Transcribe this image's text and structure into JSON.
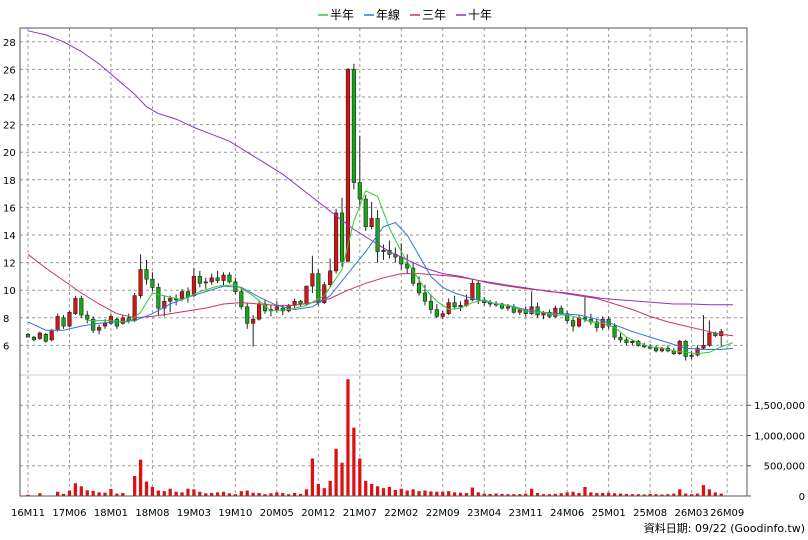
{
  "footer_note": "資料日期: 09/22  (Goodinfo.tw)",
  "chart_data": {
    "type": "candlestick",
    "legend": [
      {
        "name": "半年",
        "color": "#33cc33"
      },
      {
        "name": "年線",
        "color": "#3377dd"
      },
      {
        "name": "三年",
        "color": "#cc3366"
      },
      {
        "name": "十年",
        "color": "#8833cc"
      }
    ],
    "colors": {
      "up": "#dd1111",
      "down": "#11aa11",
      "volume": "#dd1111",
      "frame": "#555555"
    },
    "grid": true,
    "x_range": [
      0,
      120
    ],
    "x_ticks": [
      {
        "t": 0,
        "label": "16M11"
      },
      {
        "t": 7,
        "label": "17M06"
      },
      {
        "t": 14,
        "label": "18M01"
      },
      {
        "t": 21,
        "label": "18M08"
      },
      {
        "t": 28,
        "label": "19M03"
      },
      {
        "t": 35,
        "label": "19M10"
      },
      {
        "t": 42,
        "label": "20M05"
      },
      {
        "t": 49,
        "label": "20M12"
      },
      {
        "t": 56,
        "label": "21M07"
      },
      {
        "t": 63,
        "label": "22M02"
      },
      {
        "t": 70,
        "label": "22M09"
      },
      {
        "t": 77,
        "label": "23M04"
      },
      {
        "t": 84,
        "label": "23M11"
      },
      {
        "t": 91,
        "label": "24M06"
      },
      {
        "t": 98,
        "label": "25M01"
      },
      {
        "t": 105,
        "label": "25M08"
      },
      {
        "t": 112,
        "label": "26M03"
      },
      {
        "t": 118,
        "label": "26M09"
      }
    ],
    "price_axis": {
      "ylim": [
        4,
        29
      ],
      "ticks": [
        6,
        8,
        10,
        12,
        14,
        16,
        18,
        20,
        22,
        24,
        26,
        28
      ]
    },
    "volume_axis": {
      "ylim": [
        0,
        1950000
      ],
      "ticks": [
        0,
        500000,
        1000000,
        1500000
      ],
      "tick_labels": [
        "0",
        "500,000",
        "1,000,000",
        "1,500,000"
      ]
    },
    "candles": [
      [
        6.8,
        6.9,
        6.6,
        6.6
      ],
      [
        6.6,
        6.7,
        6.3,
        6.4
      ],
      [
        6.5,
        7.0,
        6.4,
        6.9
      ],
      [
        6.8,
        6.9,
        6.2,
        6.3
      ],
      [
        6.4,
        7.2,
        6.3,
        7.1
      ],
      [
        7.1,
        8.3,
        7.0,
        8.1
      ],
      [
        8.0,
        8.2,
        7.2,
        7.4
      ],
      [
        7.4,
        8.5,
        7.3,
        8.4
      ],
      [
        8.3,
        9.6,
        8.2,
        9.4
      ],
      [
        9.4,
        9.6,
        8.0,
        8.2
      ],
      [
        8.2,
        8.5,
        7.6,
        7.9
      ],
      [
        7.9,
        8.1,
        6.9,
        7.1
      ],
      [
        7.1,
        7.5,
        6.8,
        7.3
      ],
      [
        7.4,
        7.9,
        7.2,
        7.6
      ],
      [
        7.6,
        8.3,
        7.5,
        8.1
      ],
      [
        7.9,
        8.0,
        7.2,
        7.4
      ],
      [
        7.6,
        8.2,
        7.5,
        8.0
      ],
      [
        8.0,
        8.3,
        7.6,
        7.8
      ],
      [
        7.8,
        9.8,
        7.7,
        9.6
      ],
      [
        9.6,
        12.6,
        9.4,
        11.5
      ],
      [
        11.5,
        12.2,
        10.4,
        10.8
      ],
      [
        10.8,
        11.3,
        9.9,
        10.2
      ],
      [
        10.2,
        10.5,
        8.2,
        8.7
      ],
      [
        8.7,
        9.6,
        8.1,
        9.2
      ],
      [
        9.2,
        9.6,
        8.4,
        9.4
      ],
      [
        9.4,
        9.7,
        8.9,
        9.3
      ],
      [
        9.4,
        10.1,
        9.2,
        9.9
      ],
      [
        9.9,
        10.2,
        9.1,
        9.5
      ],
      [
        9.6,
        11.6,
        9.5,
        11.0
      ],
      [
        11.0,
        11.4,
        10.2,
        10.5
      ],
      [
        10.6,
        10.9,
        10.1,
        10.6
      ],
      [
        10.6,
        11.2,
        10.4,
        10.9
      ],
      [
        10.9,
        11.4,
        10.5,
        10.7
      ],
      [
        10.7,
        11.3,
        10.3,
        11.1
      ],
      [
        11.1,
        11.3,
        10.5,
        10.6
      ],
      [
        10.6,
        10.9,
        9.7,
        9.9
      ],
      [
        9.9,
        10.2,
        8.6,
        8.8
      ],
      [
        8.8,
        9.1,
        7.2,
        7.6
      ],
      [
        7.6,
        8.2,
        5.9,
        7.9
      ],
      [
        7.9,
        9.2,
        7.8,
        9.0
      ],
      [
        9.0,
        9.3,
        8.3,
        8.5
      ],
      [
        8.5,
        8.9,
        8.1,
        8.6
      ],
      [
        8.6,
        9.2,
        8.4,
        8.8
      ],
      [
        8.7,
        8.9,
        8.2,
        8.5
      ],
      [
        8.5,
        9.0,
        8.4,
        8.9
      ],
      [
        8.9,
        9.4,
        8.7,
        9.2
      ],
      [
        9.2,
        9.3,
        8.8,
        9.0
      ],
      [
        9.0,
        10.3,
        8.9,
        10.3
      ],
      [
        10.3,
        12.5,
        9.8,
        11.2
      ],
      [
        11.2,
        11.5,
        8.9,
        9.1
      ],
      [
        9.1,
        10.6,
        9.0,
        10.4
      ],
      [
        10.4,
        12.3,
        10.2,
        11.4
      ],
      [
        11.4,
        15.9,
        11.2,
        15.6
      ],
      [
        15.6,
        16.7,
        11.7,
        12.1
      ],
      [
        12.1,
        26.1,
        12.0,
        26.0
      ],
      [
        26.0,
        26.4,
        17.3,
        17.8
      ],
      [
        17.8,
        21.2,
        16.0,
        16.6
      ],
      [
        16.6,
        16.9,
        14.3,
        14.6
      ],
      [
        14.6,
        16.4,
        14.4,
        15.2
      ],
      [
        15.2,
        15.8,
        12.0,
        12.8
      ],
      [
        12.8,
        13.3,
        12.2,
        12.9
      ],
      [
        12.9,
        13.6,
        12.3,
        12.6
      ],
      [
        12.6,
        13.1,
        12.0,
        12.4
      ],
      [
        12.4,
        13.4,
        11.5,
        11.9
      ],
      [
        11.9,
        12.6,
        11.2,
        11.6
      ],
      [
        11.6,
        12.0,
        10.3,
        10.5
      ],
      [
        10.5,
        11.0,
        9.6,
        9.8
      ],
      [
        9.8,
        10.4,
        8.9,
        9.2
      ],
      [
        9.2,
        9.7,
        8.3,
        8.6
      ],
      [
        8.6,
        9.0,
        8.0,
        8.1
      ],
      [
        8.1,
        8.5,
        7.9,
        8.3
      ],
      [
        8.3,
        9.4,
        8.2,
        9.1
      ],
      [
        9.1,
        9.6,
        8.6,
        8.8
      ],
      [
        8.8,
        9.2,
        8.5,
        8.9
      ],
      [
        8.9,
        9.7,
        8.8,
        9.3
      ],
      [
        9.3,
        10.8,
        9.2,
        10.5
      ],
      [
        10.5,
        10.7,
        9.0,
        9.3
      ],
      [
        9.3,
        9.5,
        8.9,
        9.1
      ],
      [
        9.1,
        9.3,
        8.8,
        9.0
      ],
      [
        9.0,
        9.2,
        8.8,
        9.0
      ],
      [
        9.0,
        9.1,
        8.6,
        8.7
      ],
      [
        8.7,
        9.0,
        8.5,
        8.8
      ],
      [
        8.8,
        9.0,
        8.3,
        8.4
      ],
      [
        8.4,
        8.7,
        8.2,
        8.6
      ],
      [
        8.6,
        8.8,
        8.1,
        8.3
      ],
      [
        8.3,
        9.9,
        8.2,
        8.8
      ],
      [
        8.8,
        9.1,
        8.0,
        8.2
      ],
      [
        8.2,
        8.5,
        7.9,
        8.4
      ],
      [
        8.4,
        8.6,
        8.0,
        8.1
      ],
      [
        8.1,
        8.9,
        8.0,
        8.7
      ],
      [
        8.7,
        8.9,
        8.2,
        8.3
      ],
      [
        8.3,
        8.5,
        7.6,
        7.8
      ],
      [
        7.8,
        8.0,
        7.0,
        7.4
      ],
      [
        7.4,
        8.2,
        7.3,
        8.0
      ],
      [
        8.0,
        9.5,
        7.7,
        7.9
      ],
      [
        7.9,
        8.3,
        7.5,
        7.7
      ],
      [
        7.7,
        7.9,
        7.0,
        7.3
      ],
      [
        7.3,
        8.1,
        7.1,
        7.9
      ],
      [
        7.9,
        8.1,
        7.2,
        7.4
      ],
      [
        7.4,
        7.6,
        6.4,
        6.6
      ],
      [
        6.6,
        6.9,
        6.2,
        6.4
      ],
      [
        6.4,
        6.6,
        6.0,
        6.2
      ],
      [
        6.2,
        6.4,
        6.0,
        6.3
      ],
      [
        6.3,
        6.4,
        5.9,
        6.0
      ],
      [
        6.0,
        6.2,
        5.8,
        5.9
      ],
      [
        5.9,
        6.1,
        5.7,
        5.8
      ],
      [
        5.8,
        6.0,
        5.5,
        5.6
      ],
      [
        5.6,
        5.9,
        5.5,
        5.8
      ],
      [
        5.8,
        6.0,
        5.5,
        5.6
      ],
      [
        5.6,
        5.8,
        5.3,
        5.4
      ],
      [
        5.4,
        6.4,
        5.3,
        6.3
      ],
      [
        6.3,
        6.4,
        4.9,
        5.2
      ],
      [
        5.2,
        5.6,
        5.0,
        5.3
      ],
      [
        5.3,
        6.0,
        5.2,
        5.8
      ],
      [
        5.8,
        8.2,
        5.7,
        6.0
      ],
      [
        6.0,
        7.8,
        5.9,
        6.9
      ],
      [
        6.9,
        7.0,
        6.6,
        6.7
      ],
      [
        6.7,
        7.2,
        5.9,
        7.0
      ]
    ],
    "volume": [
      20000,
      0,
      45000,
      0,
      0,
      70000,
      35000,
      90000,
      210000,
      160000,
      95000,
      85000,
      60000,
      55000,
      115000,
      40000,
      50000,
      0,
      330000,
      600000,
      240000,
      150000,
      90000,
      80000,
      120000,
      70000,
      60000,
      120000,
      110000,
      70000,
      45000,
      50000,
      60000,
      70000,
      45000,
      30000,
      80000,
      90000,
      55000,
      50000,
      30000,
      45000,
      60000,
      50000,
      30000,
      50000,
      35000,
      110000,
      620000,
      200000,
      130000,
      250000,
      780000,
      550000,
      1930000,
      1130000,
      620000,
      250000,
      200000,
      160000,
      130000,
      150000,
      100000,
      120000,
      90000,
      110000,
      80000,
      90000,
      75000,
      70000,
      70000,
      80000,
      60000,
      55000,
      50000,
      140000,
      60000,
      40000,
      35000,
      40000,
      35000,
      30000,
      30000,
      30000,
      40000,
      120000,
      50000,
      30000,
      30000,
      35000,
      45000,
      60000,
      70000,
      50000,
      150000,
      60000,
      50000,
      50000,
      55000,
      45000,
      40000,
      35000,
      30000,
      30000,
      25000,
      35000,
      30000,
      25000,
      30000,
      40000,
      110000,
      40000,
      30000,
      40000,
      180000,
      110000,
      60000,
      40000
    ],
    "ma_half_year": [
      [
        10,
        7.8
      ],
      [
        14,
        7.8
      ],
      [
        17,
        7.7
      ],
      [
        19,
        8.4
      ],
      [
        21,
        9.8
      ],
      [
        23,
        9.6
      ],
      [
        26,
        9.3
      ],
      [
        29,
        9.9
      ],
      [
        32,
        10.3
      ],
      [
        35,
        10.4
      ],
      [
        38,
        9.6
      ],
      [
        41,
        8.5
      ],
      [
        44,
        8.6
      ],
      [
        47,
        8.9
      ],
      [
        50,
        9.6
      ],
      [
        53,
        11.5
      ],
      [
        55,
        15.0
      ],
      [
        57,
        17.2
      ],
      [
        59,
        16.8
      ],
      [
        61,
        14.5
      ],
      [
        63,
        12.8
      ],
      [
        65,
        11.4
      ],
      [
        67,
        10.1
      ],
      [
        69,
        9.2
      ],
      [
        71,
        8.6
      ],
      [
        73,
        8.7
      ],
      [
        75,
        9.1
      ],
      [
        77,
        9.3
      ],
      [
        79,
        9.0
      ],
      [
        81,
        8.9
      ],
      [
        83,
        8.6
      ],
      [
        85,
        8.4
      ],
      [
        87,
        8.4
      ],
      [
        89,
        8.2
      ],
      [
        91,
        8.2
      ],
      [
        93,
        8.0
      ],
      [
        95,
        7.7
      ],
      [
        97,
        7.6
      ],
      [
        99,
        7.3
      ],
      [
        101,
        6.6
      ],
      [
        103,
        6.2
      ],
      [
        105,
        5.9
      ],
      [
        107,
        5.8
      ],
      [
        109,
        5.6
      ],
      [
        111,
        5.5
      ],
      [
        113,
        5.4
      ],
      [
        115,
        5.5
      ],
      [
        117,
        5.9
      ],
      [
        119,
        6.2
      ]
    ],
    "ma_year": [
      [
        0,
        7.7
      ],
      [
        3,
        7.1
      ],
      [
        6,
        7.1
      ],
      [
        9,
        7.4
      ],
      [
        12,
        7.6
      ],
      [
        15,
        7.7
      ],
      [
        18,
        7.8
      ],
      [
        21,
        8.3
      ],
      [
        24,
        9.0
      ],
      [
        27,
        9.5
      ],
      [
        30,
        9.9
      ],
      [
        33,
        10.3
      ],
      [
        36,
        10.2
      ],
      [
        39,
        9.5
      ],
      [
        42,
        8.9
      ],
      [
        45,
        8.6
      ],
      [
        48,
        8.8
      ],
      [
        51,
        9.6
      ],
      [
        54,
        11.2
      ],
      [
        57,
        12.8
      ],
      [
        60,
        14.6
      ],
      [
        62,
        14.9
      ],
      [
        64,
        14.0
      ],
      [
        66,
        12.5
      ],
      [
        68,
        11.0
      ],
      [
        70,
        10.2
      ],
      [
        72,
        9.8
      ],
      [
        75,
        9.4
      ],
      [
        78,
        9.1
      ],
      [
        81,
        8.9
      ],
      [
        84,
        8.6
      ],
      [
        87,
        8.4
      ],
      [
        90,
        8.3
      ],
      [
        93,
        8.2
      ],
      [
        96,
        7.9
      ],
      [
        99,
        7.5
      ],
      [
        102,
        7.0
      ],
      [
        105,
        6.6
      ],
      [
        108,
        6.2
      ],
      [
        111,
        5.8
      ],
      [
        114,
        5.7
      ],
      [
        117,
        5.7
      ],
      [
        119,
        5.8
      ]
    ],
    "ma_three_year": [
      [
        0,
        12.6
      ],
      [
        3,
        11.6
      ],
      [
        6,
        10.7
      ],
      [
        9,
        9.8
      ],
      [
        12,
        9.0
      ],
      [
        15,
        8.3
      ],
      [
        18,
        8.0
      ],
      [
        21,
        8.1
      ],
      [
        24,
        8.3
      ],
      [
        27,
        8.5
      ],
      [
        30,
        8.7
      ],
      [
        33,
        9.0
      ],
      [
        36,
        9.1
      ],
      [
        39,
        9.0
      ],
      [
        42,
        8.9
      ],
      [
        45,
        8.9
      ],
      [
        48,
        9.1
      ],
      [
        51,
        9.4
      ],
      [
        54,
        10.0
      ],
      [
        57,
        10.5
      ],
      [
        60,
        10.9
      ],
      [
        63,
        11.2
      ],
      [
        66,
        11.2
      ],
      [
        69,
        11.1
      ],
      [
        72,
        11.0
      ],
      [
        75,
        10.8
      ],
      [
        78,
        10.5
      ],
      [
        81,
        10.3
      ],
      [
        84,
        10.1
      ],
      [
        87,
        10.0
      ],
      [
        90,
        9.8
      ],
      [
        93,
        9.6
      ],
      [
        96,
        9.4
      ],
      [
        99,
        9.0
      ],
      [
        102,
        8.6
      ],
      [
        105,
        8.1
      ],
      [
        108,
        7.7
      ],
      [
        111,
        7.4
      ],
      [
        114,
        7.1
      ],
      [
        117,
        6.8
      ],
      [
        119,
        6.7
      ]
    ],
    "ma_ten_year": [
      [
        0,
        28.8
      ],
      [
        3,
        28.5
      ],
      [
        6,
        28.0
      ],
      [
        9,
        27.3
      ],
      [
        12,
        26.4
      ],
      [
        15,
        25.3
      ],
      [
        18,
        24.2
      ],
      [
        20,
        23.3
      ],
      [
        22,
        22.8
      ],
      [
        25,
        22.4
      ],
      [
        28,
        21.8
      ],
      [
        31,
        21.3
      ],
      [
        34,
        20.8
      ],
      [
        37,
        20.0
      ],
      [
        40,
        19.2
      ],
      [
        43,
        18.4
      ],
      [
        46,
        17.4
      ],
      [
        49,
        16.4
      ],
      [
        52,
        15.4
      ],
      [
        55,
        14.4
      ],
      [
        58,
        13.6
      ],
      [
        61,
        12.8
      ],
      [
        64,
        12.2
      ],
      [
        67,
        11.6
      ],
      [
        70,
        11.2
      ],
      [
        73,
        11.0
      ],
      [
        76,
        10.7
      ],
      [
        79,
        10.5
      ],
      [
        82,
        10.3
      ],
      [
        85,
        10.1
      ],
      [
        88,
        9.9
      ],
      [
        91,
        9.8
      ],
      [
        94,
        9.6
      ],
      [
        97,
        9.4
      ],
      [
        100,
        9.3
      ],
      [
        103,
        9.2
      ],
      [
        106,
        9.1
      ],
      [
        109,
        9.0
      ],
      [
        112,
        9.0
      ],
      [
        115,
        8.95
      ],
      [
        119,
        8.95
      ]
    ]
  }
}
